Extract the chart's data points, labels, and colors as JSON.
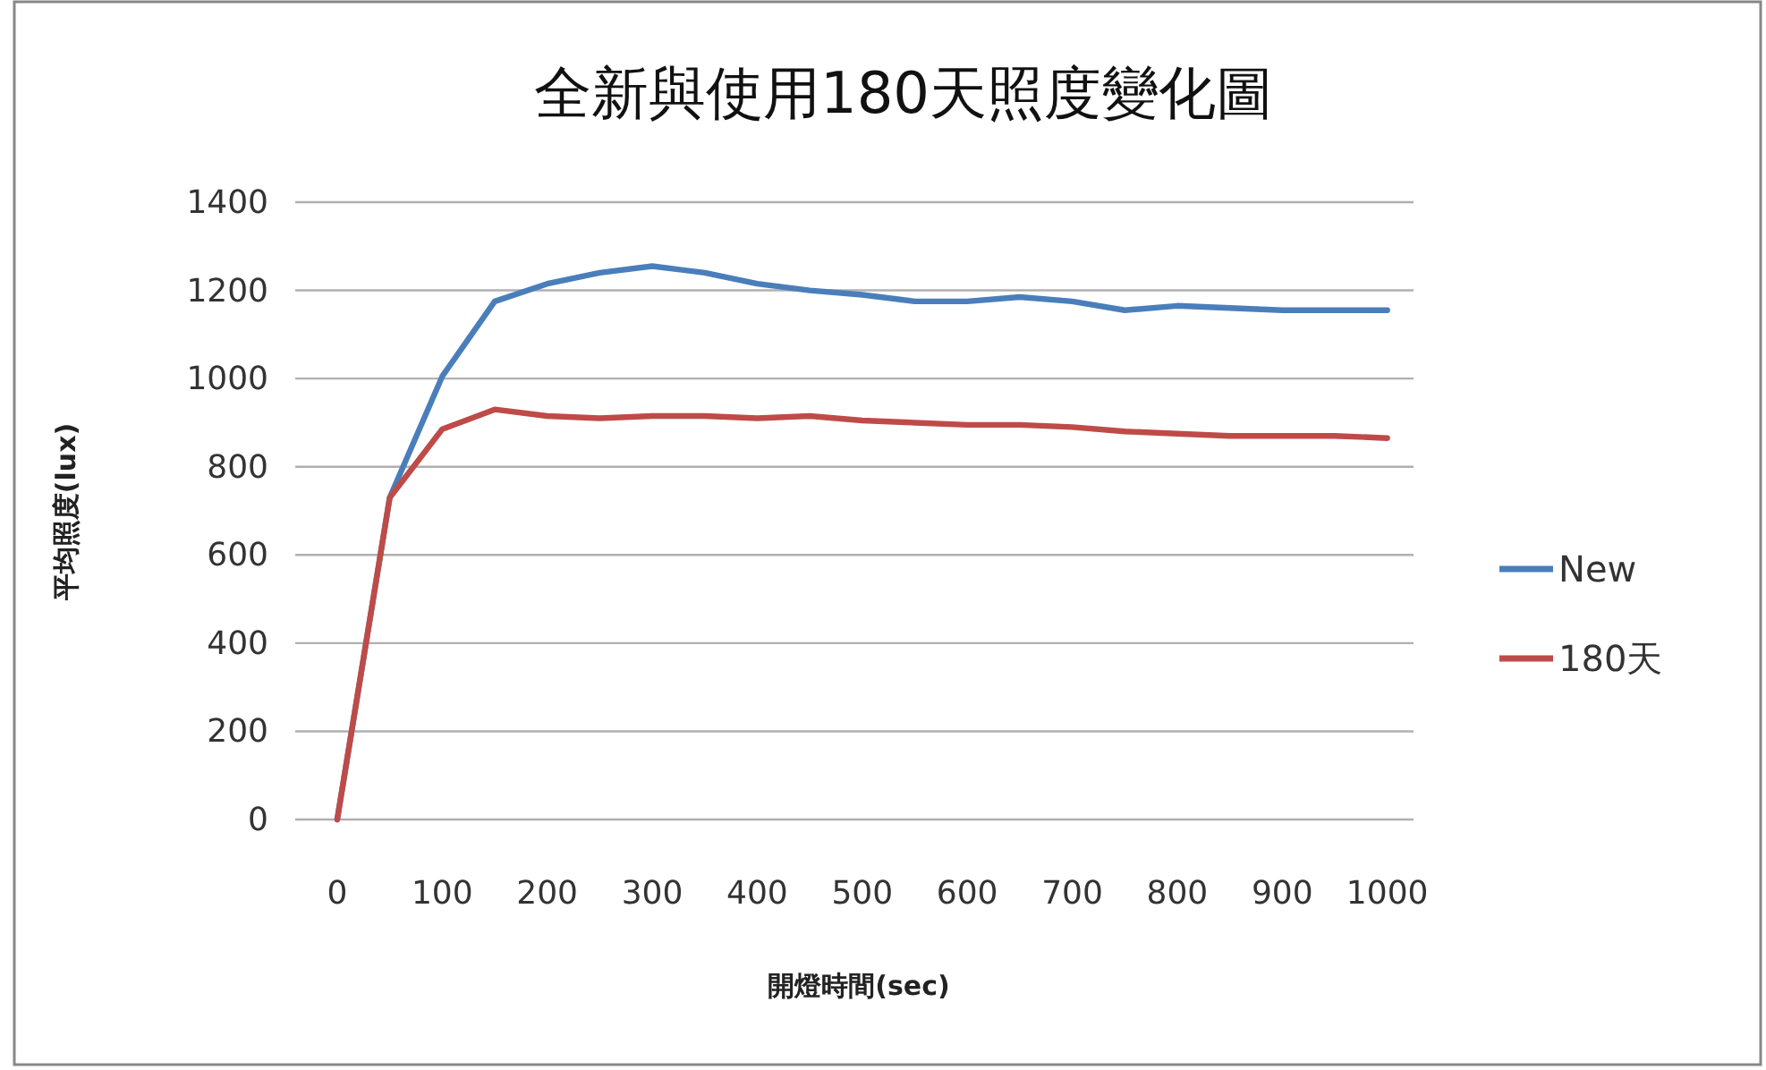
{
  "chart_data": {
    "type": "line",
    "title": "全新與使用180天照度變化圖",
    "xlabel": "開燈時間(sec)",
    "ylabel": "平均照度(lux)",
    "x": [
      0,
      50,
      100,
      150,
      200,
      250,
      300,
      350,
      400,
      450,
      500,
      550,
      600,
      650,
      700,
      750,
      800,
      850,
      900,
      950,
      1000
    ],
    "series": [
      {
        "name": "New",
        "color": "#4a7ebb",
        "values": [
          0,
          730,
          1005,
          1175,
          1215,
          1240,
          1255,
          1240,
          1215,
          1200,
          1190,
          1175,
          1175,
          1185,
          1175,
          1155,
          1165,
          1160,
          1155,
          1155,
          1155
        ]
      },
      {
        "name": "180天",
        "color": "#be4b48",
        "values": [
          0,
          730,
          885,
          930,
          915,
          910,
          915,
          915,
          910,
          915,
          905,
          900,
          895,
          895,
          890,
          880,
          875,
          870,
          870,
          870,
          865
        ]
      }
    ],
    "xlim": [
      -40,
      1025
    ],
    "xticks": [
      0,
      100,
      200,
      300,
      400,
      500,
      600,
      700,
      800,
      900,
      1000
    ],
    "ylim": [
      0,
      1400
    ],
    "yticks": [
      0,
      200,
      400,
      600,
      800,
      1000,
      1200,
      1400
    ],
    "grid": "y",
    "legend": "right",
    "marker": "none",
    "line_style": "solid"
  }
}
